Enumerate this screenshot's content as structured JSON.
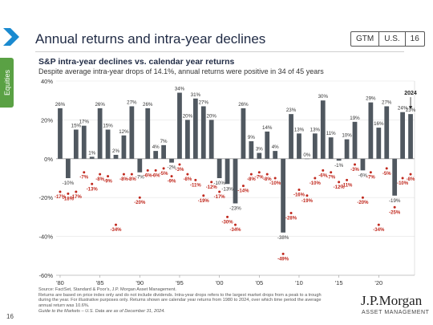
{
  "header": {
    "title": "Annual returns and intra-year declines",
    "badges": [
      "GTM",
      "U.S.",
      "16"
    ]
  },
  "side_tab": {
    "label": "Equities"
  },
  "chart_data": {
    "type": "bar",
    "title": "S&P intra-year declines vs. calendar year returns",
    "subtitle": "Despite average intra-year drops of 14.1%, annual returns were positive in 34 of 45 years",
    "ylim": [
      -60,
      40
    ],
    "yticks": [
      40,
      20,
      0,
      -20,
      -40,
      -60
    ],
    "ytick_labels": [
      "40%",
      "20%",
      "0%",
      "-20%",
      "-40%",
      "-60%"
    ],
    "xtick_years": [
      1980,
      1985,
      1990,
      1995,
      2000,
      2005,
      2010,
      2015,
      2020
    ],
    "xtick_labels": [
      "'80",
      "'85",
      "'90",
      "'95",
      "'00",
      "'05",
      "'10",
      "'15",
      "'20"
    ],
    "years": [
      1980,
      1981,
      1982,
      1983,
      1984,
      1985,
      1986,
      1987,
      1988,
      1989,
      1990,
      1991,
      1992,
      1993,
      1994,
      1995,
      1996,
      1997,
      1998,
      1999,
      2000,
      2001,
      2002,
      2003,
      2004,
      2005,
      2006,
      2007,
      2008,
      2009,
      2010,
      2011,
      2012,
      2013,
      2014,
      2015,
      2016,
      2017,
      2018,
      2019,
      2020,
      2021,
      2022,
      2023,
      2024
    ],
    "series": [
      {
        "values": [
          26,
          -10,
          15,
          17,
          1,
          26,
          15,
          2,
          12,
          27,
          -7,
          26,
          4,
          7,
          -2,
          34,
          20,
          31,
          27,
          20,
          -10,
          -13,
          -23,
          26,
          9,
          3,
          14,
          4,
          -38,
          23,
          13,
          0,
          13,
          30,
          11,
          -1,
          10,
          19,
          -6,
          29,
          16,
          27,
          -19,
          24,
          23
        ],
        "labels": [
          "26%",
          "-10%",
          "15%",
          "17%",
          "1%",
          "26%",
          "15%",
          "2%",
          "12%",
          "27%",
          "-7%",
          "26%",
          "4%",
          "7%",
          "-2%",
          "34%",
          "20%",
          "31%",
          "27%",
          "20%",
          "-10%",
          "-13%",
          "-23%",
          "26%",
          "9%",
          "3%",
          "14%",
          "4%",
          "-38%",
          "23%",
          "13%",
          "0%",
          "13%",
          "30%",
          "11%",
          "-1%",
          "10%",
          "19%",
          "-6%",
          "29%",
          "16%",
          "27%",
          "-19%",
          "24%",
          "23%"
        ]
      },
      {
        "values": [
          -17,
          -18,
          -17,
          -7,
          -13,
          -8,
          -9,
          -34,
          -8,
          -8,
          -20,
          -6,
          -6,
          -5,
          -9,
          -3,
          -8,
          -11,
          -19,
          -12,
          -17,
          -30,
          -34,
          -14,
          -8,
          -7,
          -8,
          -10,
          -49,
          -28,
          -16,
          -19,
          -10,
          -6,
          -7,
          -12,
          -11,
          -3,
          -20,
          -7,
          -34,
          -5,
          -25,
          -10,
          -8
        ],
        "labels": [
          "-17%",
          "-18%",
          "-17%",
          "-7%",
          "-13%",
          "-8%",
          "-9%",
          "-34%",
          "-8%",
          "-8%",
          "-20%",
          "-6%",
          "-6%",
          "-5%",
          "-9%",
          "-3%",
          "-8%",
          "-11%",
          "-19%",
          "-12%",
          "-17%",
          "-30%",
          "-34%",
          "-14%",
          "-8%",
          "-7%",
          "-8%",
          "-10%",
          "-49%",
          "-28%",
          "-16%",
          "-19%",
          "-10%",
          "-6%",
          "-7%",
          "-12%",
          "-11%",
          "-3%",
          "-20%",
          "-7%",
          "-34%",
          "-5%",
          "-25%",
          "-10%",
          "-8%"
        ]
      }
    ],
    "callout": {
      "year": 2024,
      "label": "2024"
    }
  },
  "colors": {
    "bar": "#505860",
    "dot": "#c0281d",
    "chevron": "#1a8ad0",
    "tab": "#5aa144"
  },
  "footer": {
    "source_lines": [
      "Source: FactSet, Standard & Poor's, J.P. Morgan Asset Management.",
      "Returns are based on price index only and do not include dividends. Intra-year drops refers to the largest market drops from a peak to a trough",
      "during the year. For illustrative purposes only. Returns shown are calendar year returns from 1980 to 2024, over which time period the average",
      "annual return was 10.6%."
    ],
    "guide_line": "Guide to the Markets – U.S. Data are as of December 31, 2024.",
    "page_number": "16"
  },
  "logo": {
    "name": "J.P.Morgan",
    "sub": "ASSET MANAGEMENT"
  }
}
